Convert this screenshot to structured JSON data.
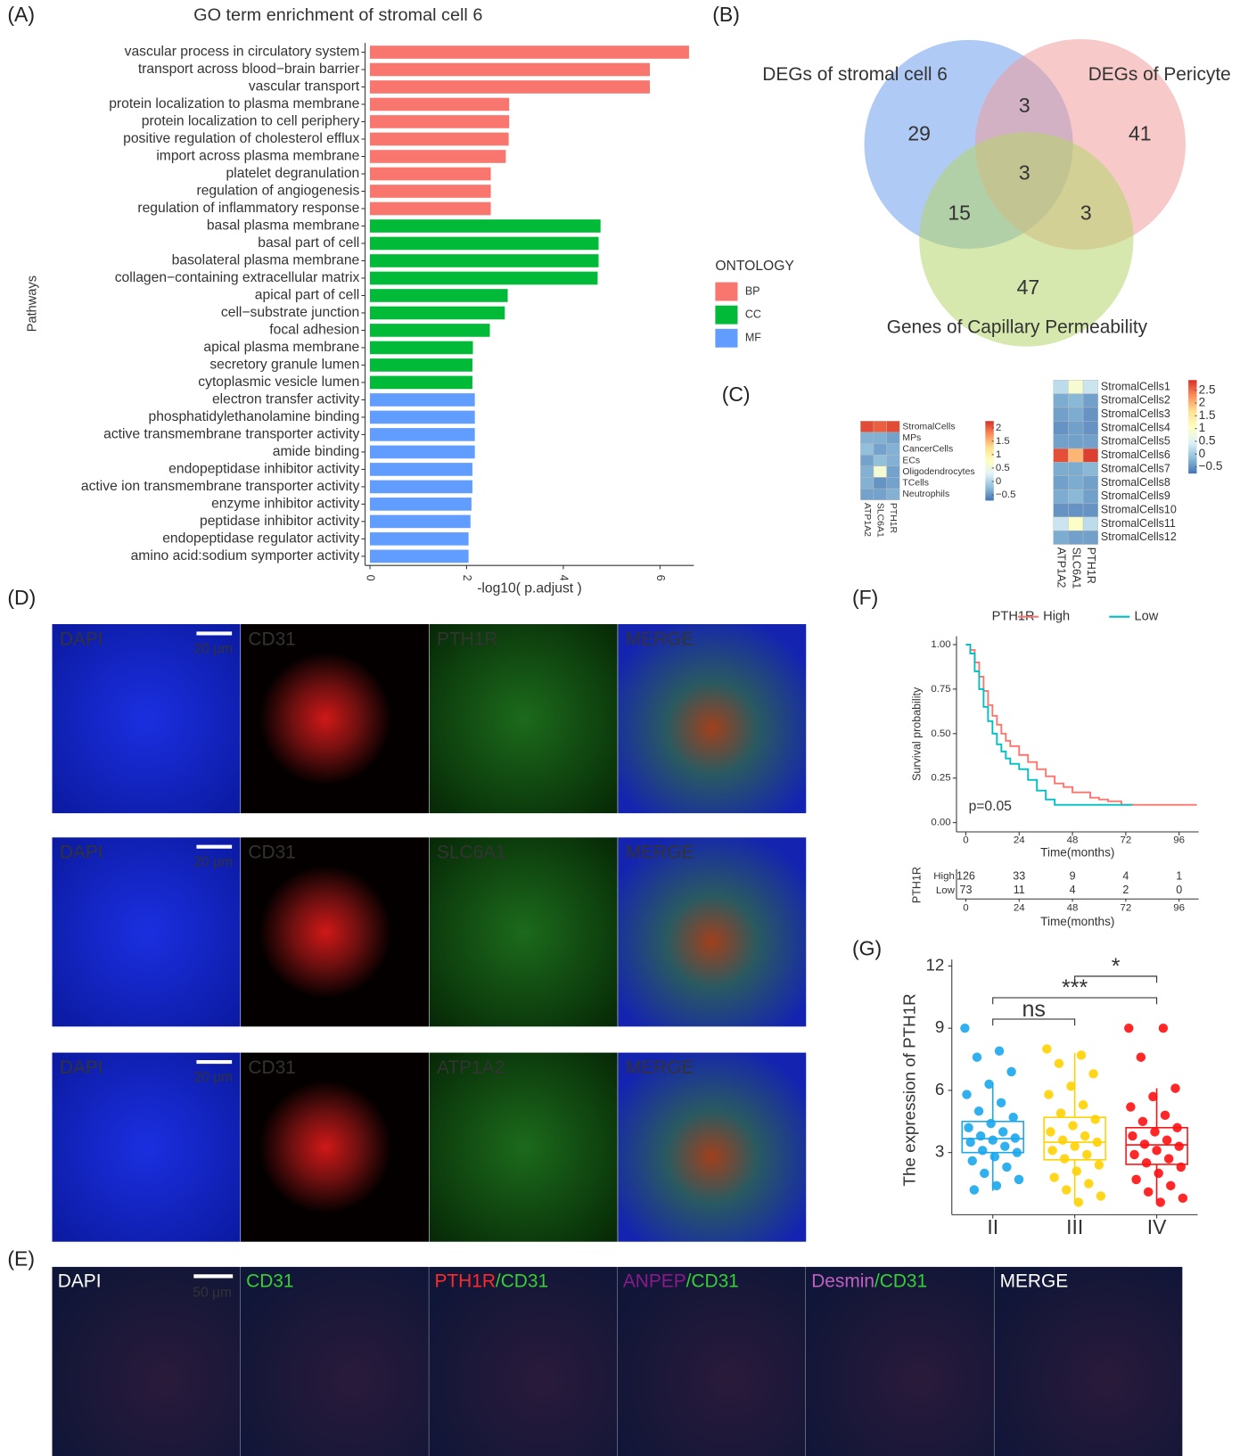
{
  "chart_data": [
    {
      "type": "hbar",
      "panel_label": "(A)",
      "title": "GO term enrichment of stromal cell 6",
      "xlabel": "-log10( p.adjust )",
      "ylabel": "Pathways",
      "categories": [
        "vascular process in circulatory system",
        "transport across blood−brain barrier",
        "vascular transport",
        "protein localization to plasma membrane",
        "protein localization to cell periphery",
        "positive regulation of cholesterol efflux",
        "import across plasma membrane",
        "platelet degranulation",
        "regulation of angiogenesis",
        "regulation of inflammatory response",
        "basal plasma membrane",
        "basal part of cell",
        "basolateral plasma membrane",
        "collagen−containing extracellular matrix",
        "apical part of cell",
        "cell−substrate junction",
        "focal adhesion",
        "apical plasma membrane",
        "secretory granule lumen",
        "cytoplasmic vesicle lumen",
        "electron transfer activity",
        "phosphatidylethanolamine binding",
        "active transmembrane transporter activity",
        "amide binding",
        "endopeptidase inhibitor activity",
        "active ion transmembrane transporter activity",
        "enzyme inhibitor activity",
        "peptidase inhibitor activity",
        "endopeptidase regulator activity",
        "amino acid:sodium symporter activity"
      ],
      "legend_title": "ONTOLOGY",
      "series": [
        {
          "name": "BP",
          "color": "#F8766D",
          "values": [
            6.6,
            5.79,
            5.79,
            2.88,
            2.88,
            2.87,
            2.81,
            2.5,
            2.5,
            2.5,
            null,
            null,
            null,
            null,
            null,
            null,
            null,
            null,
            null,
            null,
            null,
            null,
            null,
            null,
            null,
            null,
            null,
            null,
            null,
            null
          ]
        },
        {
          "name": "CC",
          "color": "#00BA38",
          "values": [
            null,
            null,
            null,
            null,
            null,
            null,
            null,
            null,
            null,
            null,
            4.77,
            4.73,
            4.73,
            4.71,
            2.85,
            2.79,
            2.48,
            2.13,
            2.12,
            2.12,
            null,
            null,
            null,
            null,
            null,
            null,
            null,
            null,
            null,
            null
          ]
        },
        {
          "name": "MF",
          "color": "#619CFF",
          "values": [
            null,
            null,
            null,
            null,
            null,
            null,
            null,
            null,
            null,
            null,
            null,
            null,
            null,
            null,
            null,
            null,
            null,
            null,
            null,
            null,
            2.17,
            2.17,
            2.17,
            2.17,
            2.12,
            2.12,
            2.1,
            2.08,
            2.04,
            2.04
          ]
        }
      ],
      "xlim": [
        -0.1,
        6.7
      ],
      "xticks": [
        0,
        2,
        4,
        6
      ]
    },
    {
      "type": "venn",
      "panel_label": "(B)",
      "sets": [
        {
          "name": "DEGs of stromal cell 6",
          "color": "#6D9EEB"
        },
        {
          "name": "DEGs of Pericyte",
          "color": "#F19C9C"
        },
        {
          "name": "Genes of Capillary Permeability",
          "color": "#B5D56A"
        }
      ],
      "counts": {
        "A": 29,
        "AB": 3,
        "B": 41,
        "ABC": 3,
        "AC": 15,
        "BC": 3,
        "C": 47
      }
    },
    {
      "type": "heatmap",
      "panel_label": "(C)",
      "rows": [
        "StromalCells",
        "MPs",
        "CancerCells",
        "ECs",
        "Oligodendrocytes",
        "TCells",
        "Neutrophils"
      ],
      "columns": [
        "ATP1A2",
        "SLC6A1",
        "PTH1R"
      ],
      "values": [
        [
          2.1,
          2.0,
          2.1
        ],
        [
          -0.3,
          -0.3,
          -0.4
        ],
        [
          -0.2,
          -0.4,
          -0.3
        ],
        [
          -0.4,
          -0.2,
          -0.3
        ],
        [
          -0.3,
          0.6,
          -0.4
        ],
        [
          -0.3,
          -0.5,
          -0.4
        ],
        [
          -0.4,
          -0.4,
          -0.3
        ]
      ],
      "colors": [
        "#4575B4",
        "#91BFDB",
        "#E0F3F8",
        "#FFFFBF",
        "#FEE090",
        "#FC8D59",
        "#D73027"
      ],
      "zlim": [
        -0.7,
        2.25
      ],
      "zticks": [
        2,
        1.5,
        1,
        0.5,
        0,
        {
          "value": -0.5,
          "label": "−0.5"
        }
      ]
    },
    {
      "type": "heatmap",
      "rows": [
        "StromalCells1",
        "StromalCells2",
        "StromalCells3",
        "StromalCells4",
        "StromalCells5",
        "StromalCells6",
        "StromalCells7",
        "StromalCells8",
        "StromalCells9",
        "StromalCells10",
        "StromalCells11",
        "StromalCells12"
      ],
      "columns": [
        "ATP1A2",
        "SLC6A1",
        "PTH1R"
      ],
      "values": [
        [
          0.2,
          0.9,
          0.3
        ],
        [
          -0.3,
          -0.2,
          -0.4
        ],
        [
          -0.4,
          -0.3,
          -0.5
        ],
        [
          -0.5,
          -0.4,
          -0.5
        ],
        [
          -0.4,
          -0.4,
          -0.4
        ],
        [
          2.7,
          2.0,
          2.8
        ],
        [
          -0.3,
          -0.3,
          -0.2
        ],
        [
          -0.4,
          -0.3,
          -0.4
        ],
        [
          -0.3,
          -0.2,
          -0.4
        ],
        [
          -0.5,
          -0.5,
          -0.5
        ],
        [
          0.3,
          1.0,
          0.2
        ],
        [
          -0.3,
          -0.4,
          -0.4
        ]
      ],
      "colors": [
        "#4575B4",
        "#91BFDB",
        "#E0F3F8",
        "#FFFFBF",
        "#FEE090",
        "#FC8D59",
        "#D73027"
      ],
      "zlim": [
        -0.75,
        2.9
      ],
      "zticks": [
        2.5,
        2,
        1.5,
        1,
        0.5,
        0,
        {
          "value": -0.5,
          "label": "−0.5"
        }
      ]
    },
    {
      "type": "survival",
      "panel_label": "(F)",
      "legend_title": "PTH1R",
      "xlabel": "Time(months)",
      "ylabel": "Survival probability",
      "annotation": "p=0.05",
      "series": [
        {
          "name": "High",
          "color": "#F8766D",
          "x": [
            0,
            2,
            4,
            6,
            8,
            10,
            12,
            14,
            16,
            18,
            20,
            24,
            28,
            32,
            36,
            40,
            44,
            48,
            56,
            60,
            64,
            70,
            104
          ],
          "values": [
            1,
            0.97,
            0.9,
            0.82,
            0.74,
            0.66,
            0.6,
            0.55,
            0.5,
            0.46,
            0.43,
            0.38,
            0.34,
            0.3,
            0.26,
            0.22,
            0.2,
            0.17,
            0.14,
            0.13,
            0.12,
            0.1,
            0.1
          ]
        },
        {
          "name": "Low",
          "color": "#00BFC4",
          "x": [
            0,
            2,
            4,
            6,
            8,
            10,
            12,
            14,
            16,
            18,
            20,
            24,
            28,
            32,
            36,
            40,
            75
          ],
          "values": [
            1,
            0.95,
            0.85,
            0.75,
            0.65,
            0.57,
            0.5,
            0.44,
            0.4,
            0.36,
            0.33,
            0.3,
            0.24,
            0.18,
            0.13,
            0.1,
            0.1
          ]
        }
      ],
      "xlim": [
        -4.2,
        104.8
      ],
      "xticks": [
        0,
        24,
        48,
        72,
        96
      ],
      "ylim": [
        -0.052,
        1.047
      ],
      "yticks": [
        {
          "value": 0,
          "label": "0.00"
        },
        0.25,
        {
          "value": 0.5,
          "label": "0.50"
        },
        0.75,
        {
          "value": 1,
          "label": "1.00"
        }
      ],
      "risk_table": {
        "High": [
          126,
          33,
          9,
          4,
          1
        ],
        "Low": [
          73,
          11,
          4,
          2,
          0
        ]
      }
    },
    {
      "type": "box",
      "panel_label": "(G)",
      "ylabel": "The expression of PTH1R",
      "categories": [
        "II",
        "III",
        "IV"
      ],
      "colors": [
        "#1AA7EC",
        "#FFD100",
        "#FF1010"
      ],
      "boxes": [
        {
          "min": 1.15,
          "q1": 3.0,
          "median": 3.67,
          "q3": 4.5,
          "max": 6.35
        },
        {
          "min": 0.6,
          "q1": 2.65,
          "median": 3.5,
          "q3": 4.7,
          "max": 7.8
        },
        {
          "min": 0.63,
          "q1": 2.43,
          "median": 3.37,
          "q3": 4.2,
          "max": 6.1
        }
      ],
      "points": [
        [
          9.0,
          7.9,
          7.6,
          6.9,
          6.3,
          5.8,
          5.4,
          5.0,
          4.7,
          4.4,
          4.2,
          4.0,
          3.8,
          3.7,
          3.6,
          3.5,
          3.3,
          3.1,
          3.0,
          2.8,
          2.6,
          2.3,
          2.0,
          1.7,
          1.4,
          1.2
        ],
        [
          8.0,
          7.7,
          7.3,
          6.8,
          6.2,
          5.8,
          5.3,
          4.9,
          4.6,
          4.3,
          4.0,
          3.8,
          3.6,
          3.5,
          3.3,
          3.1,
          2.9,
          2.7,
          2.4,
          2.1,
          1.8,
          1.5,
          1.2,
          0.9,
          0.6
        ],
        [
          9.0,
          9.0,
          7.6,
          6.1,
          5.7,
          5.2,
          4.8,
          4.5,
          4.2,
          4.0,
          3.8,
          3.6,
          3.4,
          3.3,
          3.1,
          2.9,
          2.7,
          2.5,
          2.3,
          2.0,
          1.7,
          1.4,
          1.1,
          0.8,
          0.6
        ]
      ],
      "comparisons": [
        {
          "label": "ns",
          "groups": [
            "II",
            "III"
          ]
        },
        {
          "label": "***",
          "groups": [
            "II",
            "IV"
          ]
        },
        {
          "label": "*",
          "groups": [
            "III",
            "IV"
          ]
        }
      ],
      "ylim": [
        0,
        12
      ],
      "yticks": [
        3,
        6,
        9,
        12
      ]
    }
  ],
  "panel_d": {
    "label": "(D)",
    "scale_bar": "20 μm",
    "rows": [
      [
        "DAPI",
        "CD31",
        "PTH1R",
        "MERGE"
      ],
      [
        "DAPI",
        "CD31",
        "SLC6A1",
        "MERGE"
      ],
      [
        "DAPI",
        "CD31",
        "ATP1A2",
        "MERGE"
      ]
    ]
  },
  "panel_e": {
    "label": "(E)",
    "scale_bar": "50 μm",
    "tiles": [
      [
        "DAPI"
      ],
      [
        "CD31"
      ],
      [
        "PTH1R",
        "/CD31"
      ],
      [
        "ANPEP",
        "/CD31"
      ],
      [
        "Desmin",
        "/CD31"
      ],
      [
        "MERGE"
      ]
    ]
  }
}
